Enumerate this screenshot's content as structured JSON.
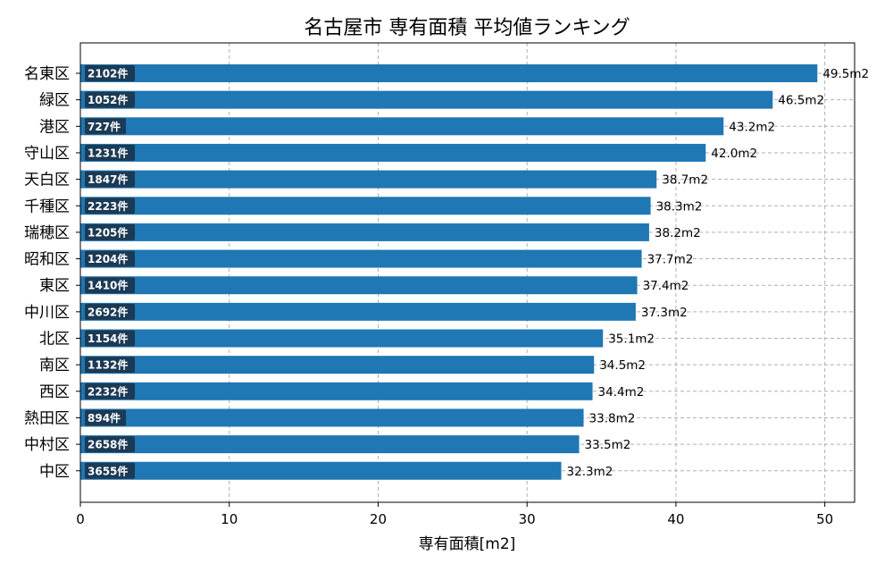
{
  "chart_data": {
    "type": "bar",
    "orientation": "horizontal",
    "title": "名古屋市 専有面積 平均値ランキング",
    "xlabel": "専有面積[m2]",
    "ylabel": "",
    "xlim": [
      0,
      52
    ],
    "xticks": [
      0,
      10,
      20,
      30,
      40,
      50
    ],
    "grid": true,
    "bar_color": "#1f77b4",
    "count_box_color": "#1b3a55",
    "value_suffix": "m2",
    "count_suffix": "件",
    "categories": [
      "名東区",
      "緑区",
      "港区",
      "守山区",
      "天白区",
      "千種区",
      "瑞穂区",
      "昭和区",
      "東区",
      "中川区",
      "北区",
      "南区",
      "西区",
      "熱田区",
      "中村区",
      "中区"
    ],
    "values": [
      49.5,
      46.5,
      43.2,
      42.0,
      38.7,
      38.3,
      38.2,
      37.7,
      37.4,
      37.3,
      35.1,
      34.5,
      34.4,
      33.8,
      33.5,
      32.3
    ],
    "value_labels": [
      "49.5m2",
      "46.5m2",
      "43.2m2",
      "42.0m2",
      "38.7m2",
      "38.3m2",
      "38.2m2",
      "37.7m2",
      "37.4m2",
      "37.3m2",
      "35.1m2",
      "34.5m2",
      "34.4m2",
      "33.8m2",
      "33.5m2",
      "32.3m2"
    ],
    "counts": [
      2102,
      1052,
      727,
      1231,
      1847,
      2223,
      1205,
      1204,
      1410,
      2692,
      1154,
      1132,
      2232,
      894,
      2658,
      3655
    ],
    "count_labels": [
      "2102件",
      "1052件",
      "727件",
      "1231件",
      "1847件",
      "2223件",
      "1205件",
      "1204件",
      "1410件",
      "2692件",
      "1154件",
      "1132件",
      "2232件",
      "894件",
      "2658件",
      "3655件"
    ]
  }
}
